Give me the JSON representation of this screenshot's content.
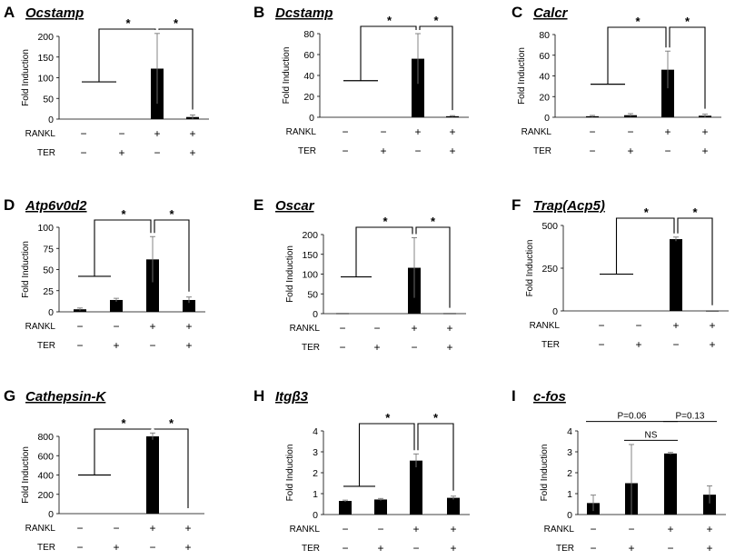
{
  "figure": {
    "row_labels": {
      "rankl": "RANKL",
      "ter": "TER"
    },
    "condition_symbols": {
      "rankl": [
        "−",
        "−",
        "+",
        "+"
      ],
      "ter": [
        "−",
        "+",
        "−",
        "+"
      ]
    }
  },
  "chart_data": [
    {
      "panel": "A",
      "title": "Ocstamp",
      "type": "bar",
      "ylabel": "Fold Induction",
      "ylim": [
        0,
        200
      ],
      "yticks": [
        0,
        50,
        100,
        150,
        200
      ],
      "categories": [
        "RANKL− TER−",
        "RANKL− TER+",
        "RANKL+ TER−",
        "RANKL+ TER+"
      ],
      "values": [
        0,
        0,
        122,
        5
      ],
      "errors": [
        0,
        0,
        85,
        5
      ],
      "baseline_line": 90,
      "annotations": [
        {
          "type": "sig",
          "label": "*",
          "left": 0,
          "right": 2
        },
        {
          "type": "sig",
          "label": "*",
          "left": 2,
          "right": 3
        }
      ]
    },
    {
      "panel": "B",
      "title": "Dcstamp",
      "type": "bar",
      "ylabel": "Fold Induction",
      "ylim": [
        0,
        80
      ],
      "yticks": [
        0,
        20,
        40,
        60,
        80
      ],
      "categories": [
        "RANKL− TER−",
        "RANKL− TER+",
        "RANKL+ TER−",
        "RANKL+ TER+"
      ],
      "values": [
        0,
        0,
        56,
        1
      ],
      "errors": [
        0,
        0,
        24,
        0.6
      ],
      "baseline_line": 35,
      "annotations": [
        {
          "type": "sig",
          "label": "*",
          "left": 0,
          "right": 2
        },
        {
          "type": "sig",
          "label": "*",
          "left": 2,
          "right": 3
        }
      ]
    },
    {
      "panel": "C",
      "title": "Calcr",
      "type": "bar",
      "ylabel": "Fold Induction",
      "ylim": [
        0,
        80
      ],
      "yticks": [
        0,
        20,
        40,
        60,
        80
      ],
      "categories": [
        "RANKL− TER−",
        "RANKL− TER+",
        "RANKL+ TER−",
        "RANKL+ TER+"
      ],
      "values": [
        1,
        2,
        46,
        1.5
      ],
      "errors": [
        0.8,
        1.5,
        18,
        1.5
      ],
      "baseline_line": 32,
      "annotations": [
        {
          "type": "sig",
          "label": "*",
          "left": 0,
          "right": 2
        },
        {
          "type": "sig",
          "label": "*",
          "left": 2,
          "right": 3
        }
      ]
    },
    {
      "panel": "D",
      "title": "Atp6v0d2",
      "type": "bar",
      "ylabel": "Fold Induction",
      "ylim": [
        0,
        100
      ],
      "yticks": [
        0,
        25,
        50,
        75,
        100
      ],
      "categories": [
        "RANKL− TER−",
        "RANKL− TER+",
        "RANKL+ TER−",
        "RANKL+ TER+"
      ],
      "values": [
        3,
        14,
        62,
        14
      ],
      "errors": [
        1.5,
        2,
        27,
        3.5
      ],
      "baseline_line": 42,
      "annotations": [
        {
          "type": "sig",
          "label": "*",
          "left": 0,
          "right": 2
        },
        {
          "type": "sig",
          "label": "*",
          "left": 2,
          "right": 3
        }
      ]
    },
    {
      "panel": "E",
      "title": "Oscar",
      "type": "bar",
      "ylabel": "Fold Induction",
      "ylim": [
        0,
        200
      ],
      "yticks": [
        0,
        50,
        100,
        150,
        200
      ],
      "categories": [
        "RANKL− TER−",
        "RANKL− TER+",
        "RANKL+ TER−",
        "RANKL+ TER+"
      ],
      "values": [
        1,
        0,
        116,
        1
      ],
      "errors": [
        0,
        0,
        76,
        0
      ],
      "baseline_line": 93,
      "annotations": [
        {
          "type": "sig",
          "label": "*",
          "left": 0,
          "right": 2
        },
        {
          "type": "sig",
          "label": "*",
          "left": 2,
          "right": 3
        }
      ]
    },
    {
      "panel": "F",
      "title": "Trap(Acp5)",
      "type": "bar",
      "ylabel": "Fold Induction",
      "ylim": [
        0,
        500
      ],
      "yticks": [
        0,
        250,
        500
      ],
      "categories": [
        "RANKL− TER−",
        "RANKL− TER+",
        "RANKL+ TER−",
        "RANKL+ TER+"
      ],
      "values": [
        0,
        0,
        420,
        1
      ],
      "errors": [
        0,
        0,
        12,
        0
      ],
      "baseline_line": 215,
      "annotations": [
        {
          "type": "sig",
          "label": "*",
          "left": 0,
          "right": 2
        },
        {
          "type": "sig",
          "label": "*",
          "left": 2,
          "right": 3
        }
      ]
    },
    {
      "panel": "G",
      "title": "Cathepsin-K",
      "type": "bar",
      "ylabel": "Fold Induction",
      "ylim": [
        0,
        800
      ],
      "yticks": [
        0,
        200,
        400,
        600,
        800
      ],
      "categories": [
        "RANKL− TER−",
        "RANKL− TER+",
        "RANKL+ TER−",
        "RANKL+ TER+"
      ],
      "values": [
        0,
        0,
        800,
        0
      ],
      "errors": [
        0,
        0,
        35,
        0
      ],
      "baseline_line": 400,
      "annotations": [
        {
          "type": "sig",
          "label": "*",
          "left": 0,
          "right": 2
        },
        {
          "type": "sig",
          "label": "*",
          "left": 2,
          "right": 3
        }
      ]
    },
    {
      "panel": "H",
      "title": "Itgβ3",
      "type": "bar",
      "ylabel": "Fold Induction",
      "ylim": [
        0,
        4
      ],
      "yticks": [
        0,
        1,
        2,
        3,
        4
      ],
      "categories": [
        "RANKL− TER−",
        "RANKL− TER+",
        "RANKL+ TER−",
        "RANKL+ TER+"
      ],
      "values": [
        0.65,
        0.72,
        2.58,
        0.8
      ],
      "errors": [
        0.04,
        0.05,
        0.32,
        0.08
      ],
      "baseline_line": 1.35,
      "annotations": [
        {
          "type": "sig",
          "label": "*",
          "left": 0,
          "right": 2
        },
        {
          "type": "sig",
          "label": "*",
          "left": 2,
          "right": 3
        }
      ]
    },
    {
      "panel": "I",
      "title": "c-fos",
      "type": "bar",
      "ylabel": "Fold Induction",
      "ylim": [
        0,
        4
      ],
      "yticks": [
        0,
        1,
        2,
        3,
        4
      ],
      "categories": [
        "RANKL− TER−",
        "RANKL− TER+",
        "RANKL+ TER−",
        "RANKL+ TER+"
      ],
      "values": [
        0.55,
        1.5,
        2.92,
        0.95
      ],
      "errors": [
        0.38,
        1.85,
        0.05,
        0.42
      ],
      "baseline_line": null,
      "annotations": [
        {
          "type": "text",
          "label": "P=0.06",
          "left": 0,
          "right": 2,
          "level": 4.45
        },
        {
          "type": "text",
          "label": "NS",
          "left": 1,
          "right": 2,
          "level": 3.55
        },
        {
          "type": "text",
          "label": "P=0.13",
          "left": 2,
          "right": 3,
          "level": 4.45
        }
      ]
    }
  ]
}
